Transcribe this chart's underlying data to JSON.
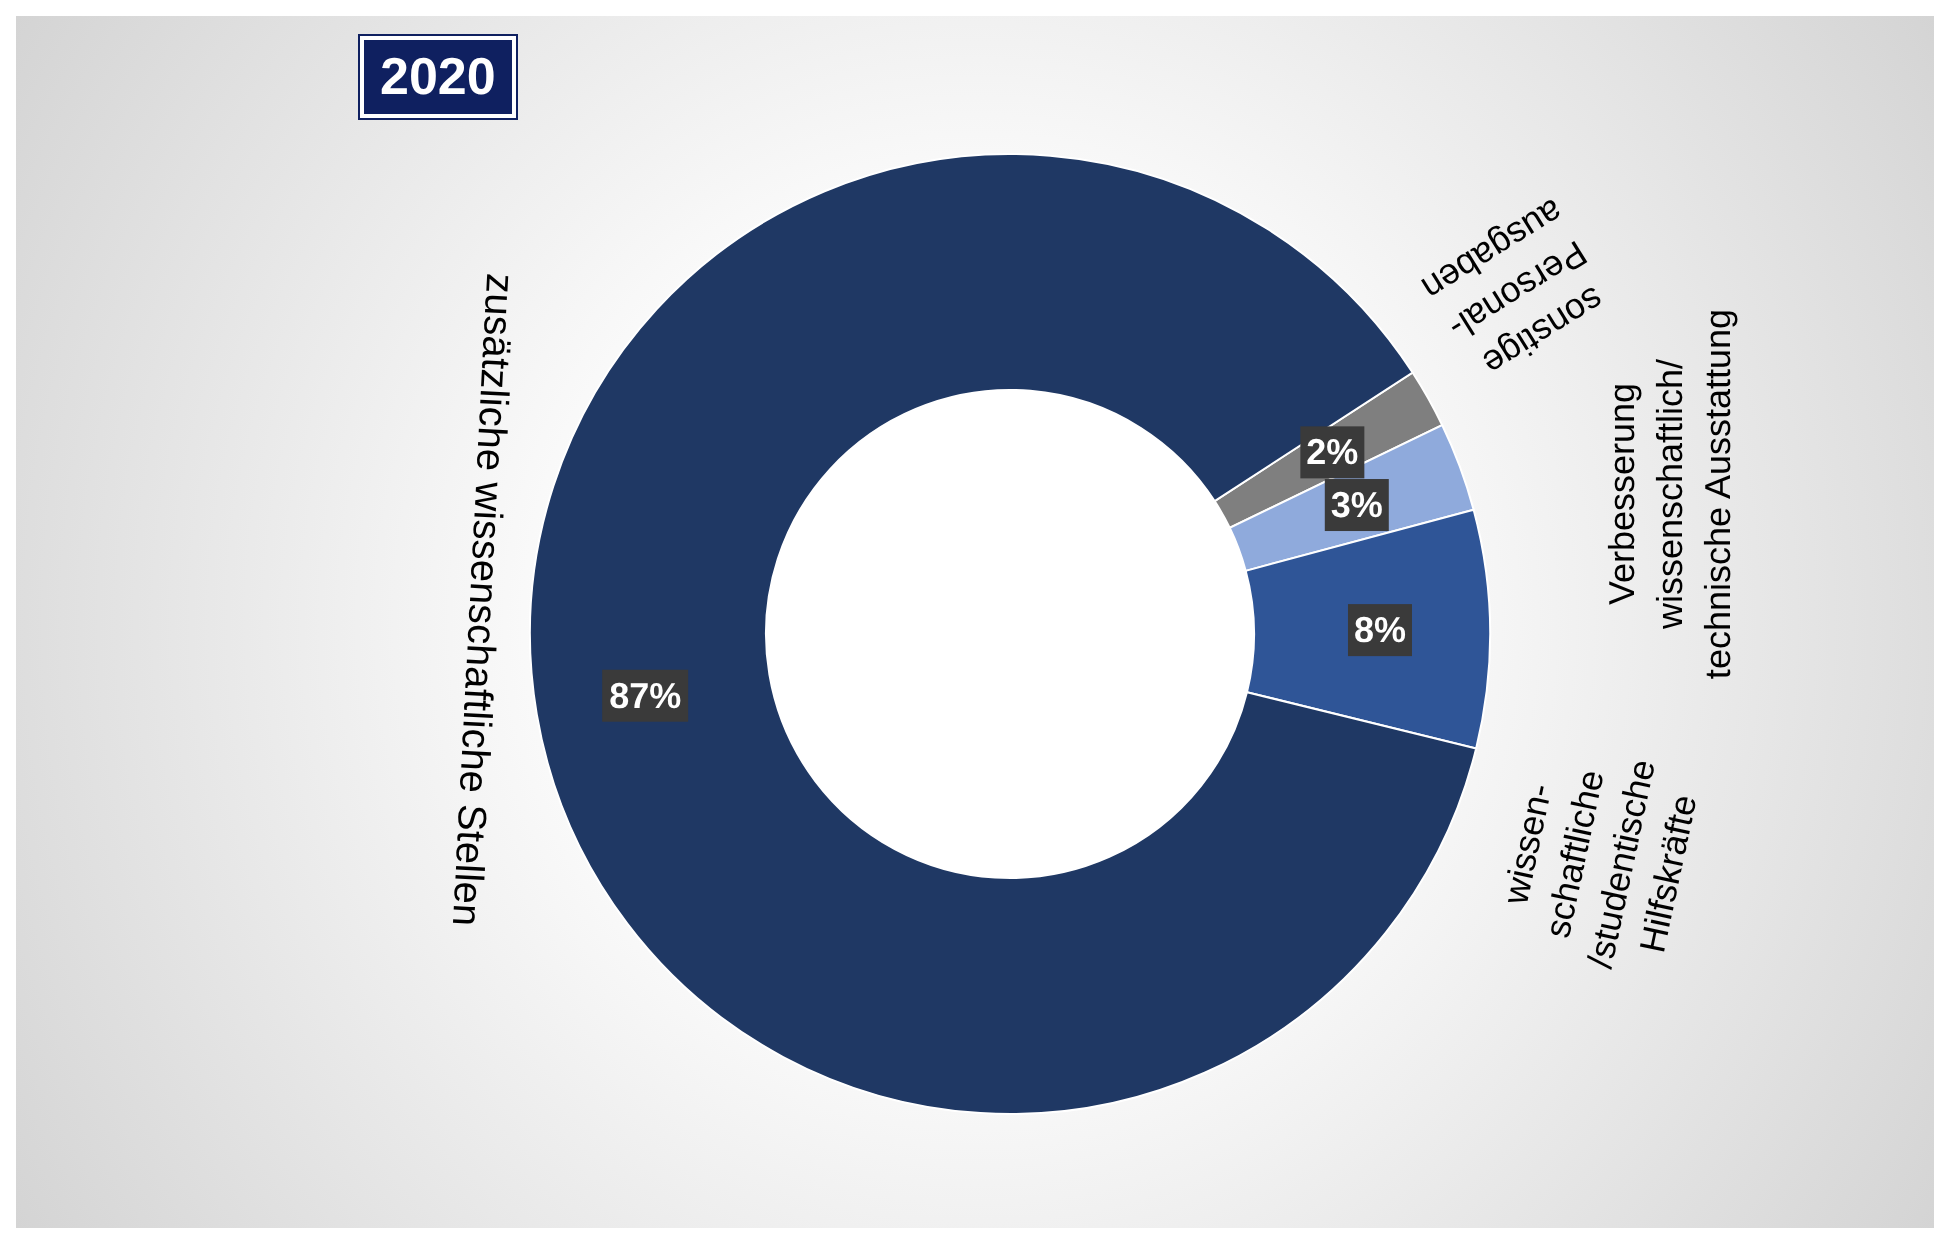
{
  "chart_data": {
    "type": "donut",
    "title": "2020",
    "categories": [
      "sonstige\nPersonal-\nausgaben",
      "Verbesserung\nwissenschaftlich/\ntechnische Ausstattung",
      "wissen-\nschaftliche\n/studentische\nHilfskräfte",
      "zusätzliche wissenschaftliche Stellen"
    ],
    "values": [
      2,
      3,
      8,
      87
    ],
    "colors": [
      "#7f7f7f",
      "#8faadc",
      "#2f5597",
      "#1f3864"
    ],
    "value_labels": [
      "2%",
      "3%",
      "8%",
      "87%"
    ]
  }
}
